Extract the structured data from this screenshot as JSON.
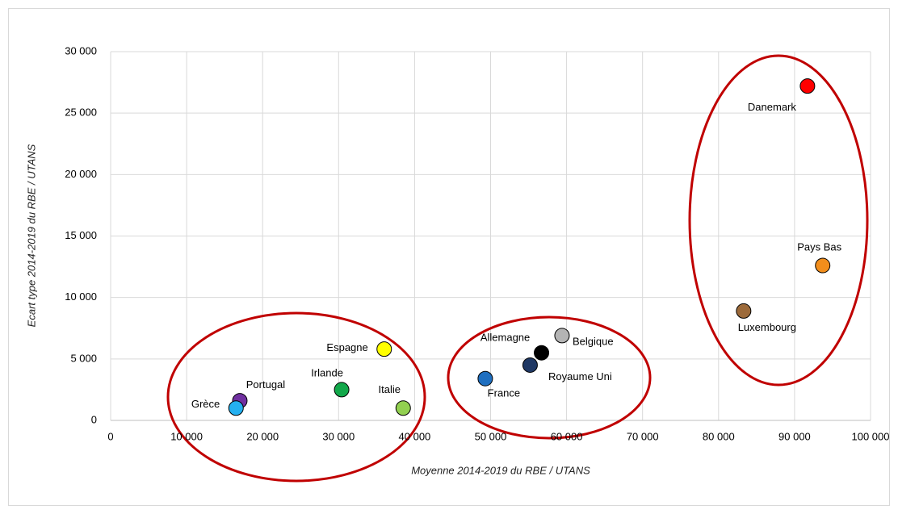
{
  "chart_data": {
    "type": "scatter",
    "x_label": "Moyenne 2014-2019 du RBE / UTANS",
    "y_label": "Ecart type 2014-2019 du RBE / UTANS",
    "xlim": [
      0,
      100000
    ],
    "ylim": [
      0,
      30000
    ],
    "xticks": [
      0,
      {
        "value": 10000,
        "label": "10 000"
      },
      {
        "value": 20000,
        "label": "20 000"
      },
      {
        "value": 30000,
        "label": "30 000"
      },
      {
        "value": 40000,
        "label": "40 000"
      },
      {
        "value": 50000,
        "label": "50 000"
      },
      {
        "value": 60000,
        "label": "60 000"
      },
      {
        "value": 70000,
        "label": "70 000"
      },
      {
        "value": 80000,
        "label": "80 000"
      },
      {
        "value": 90000,
        "label": "90 000"
      },
      {
        "value": 100000,
        "label": "100 000"
      }
    ],
    "yticks": [
      0,
      {
        "value": 5000,
        "label": "5 000"
      },
      {
        "value": 10000,
        "label": "10 000"
      },
      {
        "value": 15000,
        "label": "15 000"
      },
      {
        "value": 20000,
        "label": "20 000"
      },
      {
        "value": 25000,
        "label": "25 000"
      },
      {
        "value": 30000,
        "label": "30 000"
      }
    ],
    "grid": true,
    "series": [
      {
        "name": "Danemark",
        "color": "#ff0000",
        "x": [
          91700
        ],
        "values": [
          27200
        ]
      },
      {
        "name": "Pays Bas",
        "color": "#f28e1c",
        "x": [
          93700
        ],
        "values": [
          12600
        ]
      },
      {
        "name": "Luxembourg",
        "color": "#9c6a3a",
        "x": [
          83300
        ],
        "values": [
          8900
        ]
      },
      {
        "name": "Belgique",
        "color": "#b4b4b4",
        "x": [
          59400
        ],
        "values": [
          6900
        ]
      },
      {
        "name": "Allemagne",
        "color": "#000000",
        "x": [
          56700
        ],
        "values": [
          5500
        ]
      },
      {
        "name": "Royaume Uni",
        "color": "#1f3864",
        "x": [
          55200
        ],
        "values": [
          4500
        ]
      },
      {
        "name": "France",
        "color": "#1f6fc0",
        "x": [
          49300
        ],
        "values": [
          3400
        ]
      },
      {
        "name": "Espagne",
        "color": "#ffff00",
        "x": [
          36000
        ],
        "values": [
          5800
        ]
      },
      {
        "name": "Irlande",
        "color": "#12a84a",
        "x": [
          30400
        ],
        "values": [
          2500
        ]
      },
      {
        "name": "Italie",
        "color": "#92d050",
        "x": [
          38500
        ],
        "values": [
          1000
        ]
      },
      {
        "name": "Portugal",
        "color": "#7030a0",
        "x": [
          17000
        ],
        "values": [
          1600
        ]
      },
      {
        "name": "Grèce",
        "color": "#24b0f0",
        "x": [
          16500
        ],
        "values": [
          1000
        ]
      }
    ]
  }
}
